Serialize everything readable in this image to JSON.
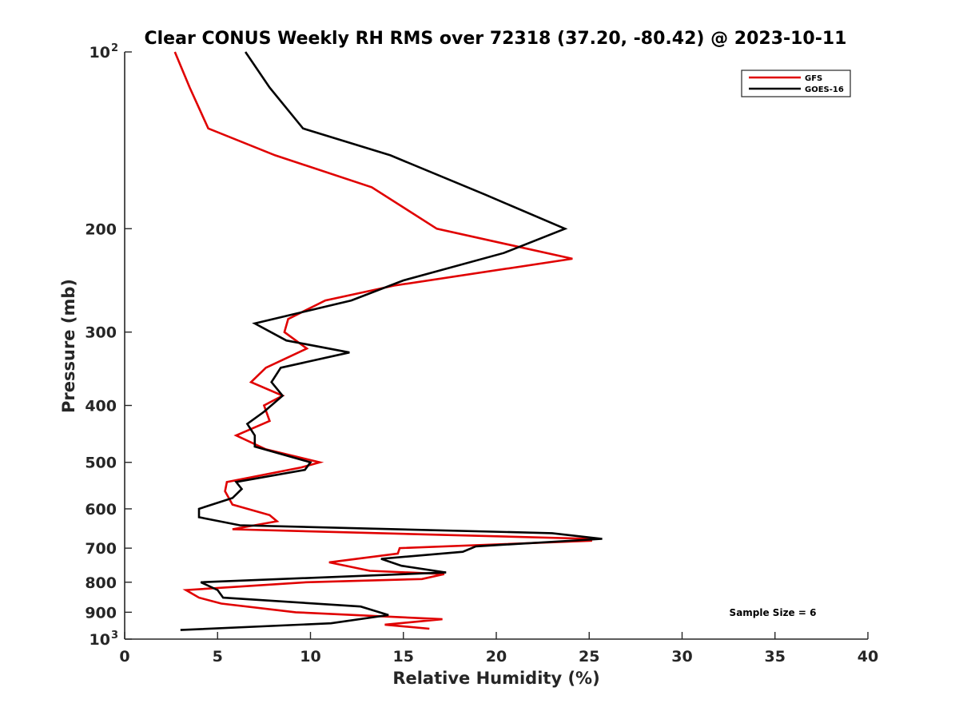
{
  "chart_data": {
    "type": "line",
    "orientation": "profile",
    "title": "Clear CONUS Weekly RH RMS over 72318 (37.20, -80.42) @ 2023-10-11",
    "xlabel": "Relative Humidity (%)",
    "ylabel": "Pressure (mb)",
    "xlim": [
      0,
      40
    ],
    "ylim": [
      100,
      1000
    ],
    "y_scale": "log",
    "y_reversed": true,
    "x_ticks": [
      0,
      5,
      10,
      15,
      20,
      25,
      30,
      35,
      40
    ],
    "y_ticks": [
      {
        "value": 100,
        "label": "10",
        "exp": "2"
      },
      {
        "value": 200,
        "label": "200"
      },
      {
        "value": 300,
        "label": "300"
      },
      {
        "value": 400,
        "label": "400"
      },
      {
        "value": 500,
        "label": "500"
      },
      {
        "value": 600,
        "label": "600"
      },
      {
        "value": 700,
        "label": "700"
      },
      {
        "value": 800,
        "label": "800"
      },
      {
        "value": 900,
        "label": "900"
      },
      {
        "value": 1000,
        "label": "10",
        "exp": "3"
      }
    ],
    "grid": false,
    "legend_position": "top-right",
    "annotation": "Sample Size = 6",
    "series": [
      {
        "name": "GFS",
        "color": "#e00000",
        "points": [
          [
            2.7,
            100
          ],
          [
            3.5,
            115
          ],
          [
            4.5,
            135
          ],
          [
            8.1,
            150
          ],
          [
            13.3,
            170
          ],
          [
            16.8,
            200
          ],
          [
            24.1,
            225
          ],
          [
            14.5,
            250
          ],
          [
            10.8,
            265
          ],
          [
            8.8,
            285
          ],
          [
            8.6,
            300
          ],
          [
            9.8,
            320
          ],
          [
            7.6,
            345
          ],
          [
            6.8,
            365
          ],
          [
            8.5,
            385
          ],
          [
            7.5,
            400
          ],
          [
            7.8,
            425
          ],
          [
            6.0,
            450
          ],
          [
            7.6,
            475
          ],
          [
            10.5,
            500
          ],
          [
            9.5,
            510
          ],
          [
            5.5,
            540
          ],
          [
            5.4,
            560
          ],
          [
            5.8,
            590
          ],
          [
            7.8,
            615
          ],
          [
            8.2,
            630
          ],
          [
            5.8,
            650
          ],
          [
            25.1,
            675
          ],
          [
            25.1,
            680
          ],
          [
            14.8,
            700
          ],
          [
            14.7,
            715
          ],
          [
            11.0,
            740
          ],
          [
            13.2,
            765
          ],
          [
            17.2,
            775
          ],
          [
            16.0,
            790
          ],
          [
            9.8,
            800
          ],
          [
            3.3,
            825
          ],
          [
            4.0,
            850
          ],
          [
            5.2,
            870
          ],
          [
            9.2,
            900
          ],
          [
            17.1,
            925
          ],
          [
            14.0,
            945
          ],
          [
            16.4,
            960
          ]
        ]
      },
      {
        "name": "GOES-16",
        "color": "#000000",
        "points": [
          [
            6.5,
            100
          ],
          [
            7.8,
            115
          ],
          [
            9.6,
            135
          ],
          [
            14.3,
            150
          ],
          [
            19.4,
            175
          ],
          [
            23.7,
            200
          ],
          [
            20.4,
            220
          ],
          [
            15.0,
            245
          ],
          [
            12.2,
            265
          ],
          [
            7.0,
            290
          ],
          [
            8.7,
            310
          ],
          [
            12.1,
            325
          ],
          [
            8.4,
            345
          ],
          [
            7.9,
            365
          ],
          [
            8.5,
            385
          ],
          [
            7.5,
            410
          ],
          [
            6.6,
            430
          ],
          [
            7.0,
            450
          ],
          [
            7.0,
            470
          ],
          [
            10.0,
            500
          ],
          [
            9.7,
            515
          ],
          [
            6.0,
            540
          ],
          [
            6.3,
            555
          ],
          [
            5.8,
            575
          ],
          [
            4.0,
            600
          ],
          [
            4.0,
            620
          ],
          [
            6.2,
            640
          ],
          [
            23.0,
            660
          ],
          [
            25.7,
            675
          ],
          [
            18.9,
            695
          ],
          [
            18.2,
            710
          ],
          [
            13.8,
            730
          ],
          [
            14.9,
            750
          ],
          [
            17.3,
            770
          ],
          [
            4.1,
            800
          ],
          [
            5.0,
            825
          ],
          [
            5.3,
            850
          ],
          [
            12.7,
            880
          ],
          [
            14.2,
            910
          ],
          [
            11.1,
            940
          ],
          [
            3.0,
            965
          ]
        ]
      }
    ]
  }
}
